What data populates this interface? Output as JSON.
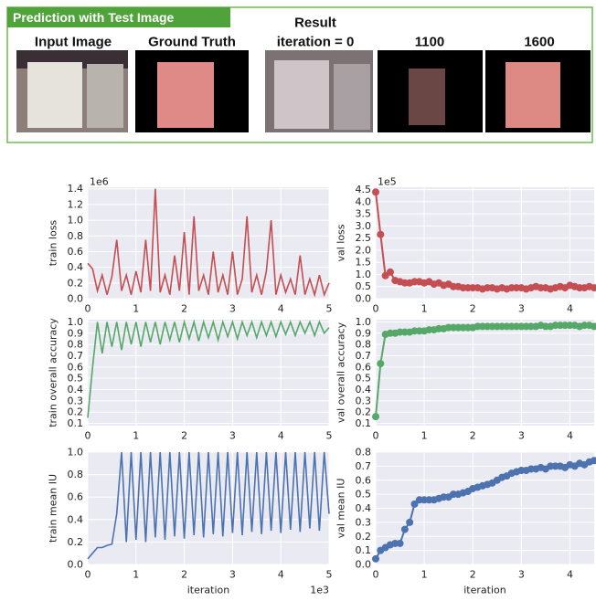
{
  "panel": {
    "title": "Prediction with Test Image",
    "result_label": "Result",
    "columns": [
      "Input Image",
      "Ground Truth",
      "iteration = 0",
      "1100",
      "1600"
    ]
  },
  "chart_data": [
    {
      "type": "line",
      "ylabel": "train loss",
      "y_offset_label": "1e6",
      "color": "#c44e52",
      "markers": false,
      "grid": true,
      "x": [
        0,
        0.1,
        0.2,
        0.3,
        0.4,
        0.5,
        0.6,
        0.7,
        0.8,
        0.9,
        1.0,
        1.1,
        1.2,
        1.3,
        1.4,
        1.5,
        1.6,
        1.7,
        1.8,
        1.9,
        2.0,
        2.1,
        2.2,
        2.3,
        2.4,
        2.5,
        2.6,
        2.7,
        2.8,
        2.9,
        3.0,
        3.1,
        3.2,
        3.3,
        3.4,
        3.5,
        3.6,
        3.7,
        3.8,
        3.9,
        4.0,
        4.1,
        4.2,
        4.3,
        4.4,
        4.5,
        4.6,
        4.7,
        4.8,
        4.9,
        5.0
      ],
      "values": [
        0.45,
        0.38,
        0.1,
        0.3,
        0.05,
        0.28,
        0.75,
        0.1,
        0.3,
        0.05,
        0.35,
        0.08,
        0.75,
        0.1,
        1.4,
        0.08,
        0.3,
        0.05,
        0.55,
        0.1,
        0.85,
        0.05,
        1.05,
        0.1,
        0.3,
        0.05,
        0.6,
        0.08,
        0.3,
        0.05,
        0.6,
        0.05,
        0.25,
        1.05,
        0.08,
        0.3,
        0.05,
        0.35,
        1.0,
        0.05,
        0.3,
        0.08,
        0.25,
        0.05,
        0.55,
        0.05,
        0.25,
        0.05,
        0.3,
        0.05,
        0.2
      ],
      "xlim": [
        0,
        5
      ],
      "xticks": [
        0,
        1,
        2,
        3,
        4,
        5
      ],
      "ylim": [
        0,
        1.42
      ],
      "yticks": [
        {
          "value": 0,
          "label": "0.0"
        },
        0.2,
        0.4,
        0.6,
        0.8,
        {
          "value": 1,
          "label": "1.0"
        },
        1.2,
        1.4
      ]
    },
    {
      "type": "line",
      "ylabel": "val loss",
      "y_offset_label": "1e5",
      "color": "#c44e52",
      "markers": true,
      "grid": true,
      "x": [
        0,
        0.1,
        0.2,
        0.3,
        0.4,
        0.5,
        0.6,
        0.7,
        0.8,
        0.9,
        1.0,
        1.1,
        1.2,
        1.3,
        1.4,
        1.5,
        1.6,
        1.7,
        1.8,
        1.9,
        2.0,
        2.1,
        2.2,
        2.3,
        2.4,
        2.5,
        2.6,
        2.7,
        2.8,
        2.9,
        3.0,
        3.1,
        3.2,
        3.3,
        3.4,
        3.5,
        3.6,
        3.7,
        3.8,
        3.9,
        4.0,
        4.1,
        4.2,
        4.3,
        4.4,
        4.5
      ],
      "values": [
        4.4,
        2.65,
        0.95,
        1.1,
        0.75,
        0.7,
        0.65,
        0.65,
        0.7,
        0.7,
        0.65,
        0.7,
        0.6,
        0.65,
        0.55,
        0.6,
        0.5,
        0.5,
        0.45,
        0.45,
        0.45,
        0.45,
        0.4,
        0.45,
        0.45,
        0.4,
        0.45,
        0.4,
        0.45,
        0.45,
        0.45,
        0.4,
        0.45,
        0.5,
        0.45,
        0.45,
        0.4,
        0.45,
        0.5,
        0.45,
        0.55,
        0.5,
        0.45,
        0.45,
        0.5,
        0.45
      ],
      "xlim": [
        0,
        4.5
      ],
      "xticks": [
        0,
        1,
        2,
        3,
        4
      ],
      "ylim": [
        0,
        4.6
      ],
      "yticks": [
        {
          "value": 0,
          "label": "0.0"
        },
        0.5,
        {
          "value": 1,
          "label": "1.0"
        },
        1.5,
        {
          "value": 2,
          "label": "2.0"
        },
        2.5,
        {
          "value": 3,
          "label": "3.0"
        },
        3.5,
        {
          "value": 4,
          "label": "4.0"
        },
        4.5
      ]
    },
    {
      "type": "line",
      "ylabel": "train overall accuracy",
      "color": "#55a868",
      "markers": false,
      "grid": true,
      "x": [
        0,
        0.1,
        0.2,
        0.3,
        0.4,
        0.5,
        0.6,
        0.7,
        0.8,
        0.9,
        1.0,
        1.1,
        1.2,
        1.3,
        1.4,
        1.5,
        1.6,
        1.7,
        1.8,
        1.9,
        2.0,
        2.1,
        2.2,
        2.3,
        2.4,
        2.5,
        2.6,
        2.7,
        2.8,
        2.9,
        3.0,
        3.1,
        3.2,
        3.3,
        3.4,
        3.5,
        3.6,
        3.7,
        3.8,
        3.9,
        4.0,
        4.1,
        4.2,
        4.3,
        4.4,
        4.5,
        4.6,
        4.7,
        4.8,
        4.9,
        5.0
      ],
      "values": [
        0.15,
        0.6,
        1.0,
        0.72,
        1.0,
        0.78,
        1.0,
        0.75,
        1.0,
        0.8,
        1.0,
        0.78,
        1.0,
        0.82,
        1.0,
        0.8,
        1.0,
        0.84,
        1.0,
        0.82,
        1.0,
        0.85,
        1.0,
        0.83,
        1.0,
        0.86,
        1.0,
        0.84,
        1.0,
        0.87,
        1.0,
        0.85,
        1.0,
        0.88,
        1.0,
        0.86,
        1.0,
        0.88,
        1.0,
        0.87,
        1.0,
        0.89,
        1.0,
        0.88,
        1.0,
        0.9,
        1.0,
        0.88,
        1.0,
        0.9,
        0.95
      ],
      "xlim": [
        0,
        5
      ],
      "xticks": [
        0,
        1,
        2,
        3,
        4,
        5
      ],
      "ylim": [
        0.08,
        1.02
      ],
      "yticks": [
        0.1,
        0.2,
        0.3,
        0.4,
        0.5,
        0.6,
        0.7,
        0.8,
        0.9,
        {
          "value": 1,
          "label": "1.0"
        }
      ]
    },
    {
      "type": "line",
      "ylabel": "val overall accuracy",
      "color": "#55a868",
      "markers": true,
      "grid": true,
      "x": [
        0,
        0.1,
        0.2,
        0.3,
        0.4,
        0.5,
        0.6,
        0.7,
        0.8,
        0.9,
        1.0,
        1.1,
        1.2,
        1.3,
        1.4,
        1.5,
        1.6,
        1.7,
        1.8,
        1.9,
        2.0,
        2.1,
        2.2,
        2.3,
        2.4,
        2.5,
        2.6,
        2.7,
        2.8,
        2.9,
        3.0,
        3.1,
        3.2,
        3.3,
        3.4,
        3.5,
        3.6,
        3.7,
        3.8,
        3.9,
        4.0,
        4.1,
        4.2,
        4.3,
        4.4,
        4.5
      ],
      "values": [
        0.16,
        0.63,
        0.89,
        0.9,
        0.9,
        0.91,
        0.91,
        0.91,
        0.92,
        0.92,
        0.92,
        0.93,
        0.93,
        0.94,
        0.94,
        0.95,
        0.95,
        0.95,
        0.95,
        0.95,
        0.95,
        0.96,
        0.96,
        0.96,
        0.96,
        0.96,
        0.96,
        0.96,
        0.96,
        0.96,
        0.96,
        0.96,
        0.96,
        0.96,
        0.97,
        0.96,
        0.96,
        0.97,
        0.97,
        0.97,
        0.97,
        0.97,
        0.96,
        0.97,
        0.97,
        0.96
      ],
      "xlim": [
        0,
        4.5
      ],
      "xticks": [
        0,
        1,
        2,
        3,
        4
      ],
      "ylim": [
        0.08,
        1.02
      ],
      "yticks": [
        0.1,
        0.2,
        0.3,
        0.4,
        0.5,
        0.6,
        0.7,
        0.8,
        0.9,
        {
          "value": 1,
          "label": "1.0"
        }
      ]
    },
    {
      "type": "line",
      "ylabel": "train mean IU",
      "xlabel": "iteration",
      "x_offset_label": "1e3",
      "color": "#4c72b0",
      "markers": false,
      "grid": true,
      "x": [
        0,
        0.1,
        0.2,
        0.3,
        0.4,
        0.5,
        0.6,
        0.7,
        0.8,
        0.9,
        1.0,
        1.1,
        1.2,
        1.3,
        1.4,
        1.5,
        1.6,
        1.7,
        1.8,
        1.9,
        2.0,
        2.1,
        2.2,
        2.3,
        2.4,
        2.5,
        2.6,
        2.7,
        2.8,
        2.9,
        3.0,
        3.1,
        3.2,
        3.3,
        3.4,
        3.5,
        3.6,
        3.7,
        3.8,
        3.9,
        4.0,
        4.1,
        4.2,
        4.3,
        4.4,
        4.5,
        4.6,
        4.7,
        4.8,
        4.9,
        5.0
      ],
      "values": [
        0.05,
        0.1,
        0.15,
        0.15,
        0.17,
        0.18,
        0.45,
        1.0,
        0.2,
        1.0,
        0.22,
        1.0,
        0.2,
        1.0,
        0.24,
        1.0,
        0.22,
        1.0,
        0.25,
        1.0,
        0.23,
        1.0,
        0.26,
        1.0,
        0.24,
        1.0,
        0.27,
        1.0,
        0.25,
        1.0,
        0.28,
        1.0,
        0.26,
        1.0,
        0.29,
        1.0,
        0.27,
        1.0,
        0.3,
        1.0,
        0.28,
        1.0,
        0.31,
        1.0,
        0.29,
        1.0,
        0.32,
        1.0,
        0.3,
        1.0,
        0.45
      ],
      "xlim": [
        0,
        5
      ],
      "xticks": [
        0,
        1,
        2,
        3,
        4,
        5
      ],
      "ylim": [
        0,
        1.0
      ],
      "yticks": [
        {
          "value": 0,
          "label": "0.0"
        },
        0.2,
        0.4,
        0.6,
        0.8,
        {
          "value": 1,
          "label": "1.0"
        }
      ]
    },
    {
      "type": "line",
      "ylabel": "val mean IU",
      "xlabel": "iteration",
      "color": "#4c72b0",
      "markers": true,
      "grid": true,
      "x": [
        0,
        0.1,
        0.2,
        0.3,
        0.4,
        0.5,
        0.6,
        0.7,
        0.8,
        0.9,
        1.0,
        1.1,
        1.2,
        1.3,
        1.4,
        1.5,
        1.6,
        1.7,
        1.8,
        1.9,
        2.0,
        2.1,
        2.2,
        2.3,
        2.4,
        2.5,
        2.6,
        2.7,
        2.8,
        2.9,
        3.0,
        3.1,
        3.2,
        3.3,
        3.4,
        3.5,
        3.6,
        3.7,
        3.8,
        3.9,
        4.0,
        4.1,
        4.2,
        4.3,
        4.4,
        4.5
      ],
      "values": [
        0.04,
        0.1,
        0.12,
        0.14,
        0.15,
        0.15,
        0.25,
        0.3,
        0.43,
        0.46,
        0.46,
        0.46,
        0.46,
        0.47,
        0.48,
        0.48,
        0.5,
        0.5,
        0.51,
        0.52,
        0.54,
        0.55,
        0.56,
        0.57,
        0.58,
        0.6,
        0.62,
        0.63,
        0.65,
        0.66,
        0.67,
        0.67,
        0.68,
        0.68,
        0.69,
        0.68,
        0.7,
        0.7,
        0.7,
        0.69,
        0.71,
        0.7,
        0.72,
        0.71,
        0.73,
        0.74
      ],
      "xlim": [
        0,
        4.5
      ],
      "xticks": [
        0,
        1,
        2,
        3,
        4
      ],
      "ylim": [
        0,
        0.8
      ],
      "yticks": [
        {
          "value": 0,
          "label": "0.0"
        },
        0.1,
        0.2,
        0.3,
        0.4,
        0.5,
        0.6,
        0.7,
        0.8
      ]
    }
  ]
}
